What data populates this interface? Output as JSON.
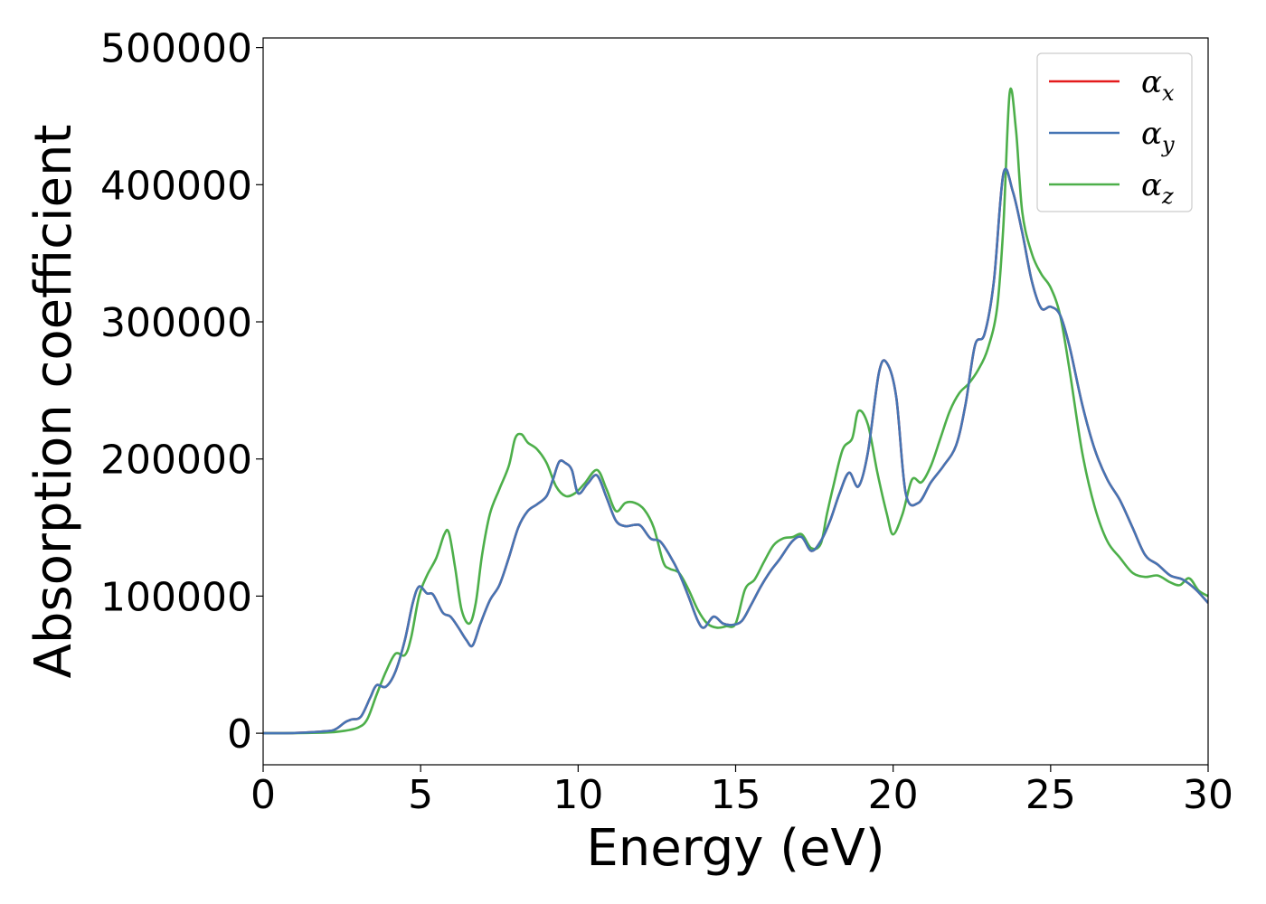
{
  "chart_data": {
    "type": "line",
    "title": "",
    "xlabel": "Energy (eV)",
    "ylabel": "Absorption coefficient",
    "xlim": [
      0,
      30
    ],
    "ylim": [
      -23000,
      507000
    ],
    "xticks": [
      0,
      5,
      10,
      15,
      20,
      25,
      30
    ],
    "yticks": [
      0,
      100000,
      200000,
      300000,
      400000,
      500000
    ],
    "grid": false,
    "legend_position": "top-right",
    "series": [
      {
        "name": "x",
        "color": "#e41a1c",
        "x": [
          0,
          1,
          2,
          2.3,
          2.6,
          2.8,
          3.1,
          3.4,
          3.6,
          3.9,
          4.2,
          4.5,
          4.75,
          4.95,
          5.2,
          5.4,
          5.7,
          5.95,
          6.2,
          6.45,
          6.65,
          6.9,
          7.2,
          7.5,
          7.8,
          8.1,
          8.4,
          8.7,
          9.0,
          9.2,
          9.4,
          9.6,
          9.8,
          10.0,
          10.3,
          10.6,
          10.9,
          11.2,
          11.5,
          11.8,
          12.0,
          12.3,
          12.6,
          12.9,
          13.2,
          13.5,
          13.8,
          14.0,
          14.3,
          14.6,
          14.9,
          15.2,
          15.5,
          15.8,
          16.1,
          16.4,
          16.8,
          17.1,
          17.4,
          17.7,
          18.0,
          18.3,
          18.6,
          18.9,
          19.2,
          19.55,
          19.8,
          20.1,
          20.4,
          20.8,
          21.2,
          21.6,
          22.0,
          22.3,
          22.6,
          22.9,
          23.2,
          23.5,
          23.8,
          24.1,
          24.4,
          24.7,
          25.0,
          25.3,
          25.6,
          26.0,
          26.4,
          26.8,
          27.2,
          27.6,
          28.0,
          28.4,
          28.8,
          29.2,
          29.6,
          30
        ],
        "y": [
          0,
          200,
          1500,
          3000,
          8000,
          10000,
          12000,
          26000,
          35000,
          34000,
          45000,
          68000,
          95000,
          107000,
          102000,
          101000,
          88000,
          85000,
          77000,
          68000,
          64000,
          80000,
          97000,
          108000,
          128000,
          150000,
          162000,
          167000,
          173000,
          185000,
          198000,
          197000,
          192000,
          175000,
          182000,
          188000,
          172000,
          155000,
          151000,
          152000,
          151000,
          142000,
          140000,
          130000,
          117000,
          100000,
          82000,
          77000,
          85000,
          80000,
          79000,
          82000,
          94000,
          107000,
          118000,
          127000,
          140000,
          143000,
          133000,
          140000,
          155000,
          175000,
          190000,
          180000,
          205000,
          263000,
          270000,
          245000,
          175000,
          168000,
          183000,
          195000,
          210000,
          240000,
          283000,
          291000,
          330000,
          408000,
          395000,
          365000,
          330000,
          310000,
          311000,
          305000,
          282000,
          240000,
          207000,
          185000,
          170000,
          150000,
          130000,
          123000,
          115000,
          112000,
          105000,
          95000
        ]
      },
      {
        "name": "y",
        "color": "#4575b4",
        "x": [
          0,
          1,
          2,
          2.3,
          2.6,
          2.8,
          3.1,
          3.4,
          3.6,
          3.9,
          4.2,
          4.5,
          4.75,
          4.95,
          5.2,
          5.4,
          5.7,
          5.95,
          6.2,
          6.45,
          6.65,
          6.9,
          7.2,
          7.5,
          7.8,
          8.1,
          8.4,
          8.7,
          9.0,
          9.2,
          9.4,
          9.6,
          9.8,
          10.0,
          10.3,
          10.6,
          10.9,
          11.2,
          11.5,
          11.8,
          12.0,
          12.3,
          12.6,
          12.9,
          13.2,
          13.5,
          13.8,
          14.0,
          14.3,
          14.6,
          14.9,
          15.2,
          15.5,
          15.8,
          16.1,
          16.4,
          16.8,
          17.1,
          17.4,
          17.7,
          18.0,
          18.3,
          18.6,
          18.9,
          19.2,
          19.55,
          19.8,
          20.1,
          20.4,
          20.8,
          21.2,
          21.6,
          22.0,
          22.3,
          22.6,
          22.9,
          23.2,
          23.5,
          23.8,
          24.1,
          24.4,
          24.7,
          25.0,
          25.3,
          25.6,
          26.0,
          26.4,
          26.8,
          27.2,
          27.6,
          28.0,
          28.4,
          28.8,
          29.2,
          29.6,
          30
        ],
        "y": [
          0,
          200,
          1500,
          3000,
          8000,
          10000,
          12000,
          26000,
          35000,
          34000,
          45000,
          68000,
          95000,
          107000,
          102000,
          101000,
          88000,
          85000,
          77000,
          68000,
          64000,
          80000,
          97000,
          108000,
          128000,
          150000,
          162000,
          167000,
          173000,
          185000,
          198000,
          197000,
          192000,
          175000,
          182000,
          188000,
          172000,
          155000,
          151000,
          152000,
          151000,
          142000,
          140000,
          130000,
          117000,
          100000,
          82000,
          77000,
          85000,
          80000,
          79000,
          82000,
          94000,
          107000,
          118000,
          127000,
          140000,
          143000,
          133000,
          140000,
          155000,
          175000,
          190000,
          180000,
          205000,
          263000,
          270000,
          245000,
          175000,
          168000,
          183000,
          195000,
          210000,
          240000,
          283000,
          291000,
          330000,
          408000,
          395000,
          365000,
          330000,
          310000,
          311000,
          305000,
          282000,
          240000,
          207000,
          185000,
          170000,
          150000,
          130000,
          123000,
          115000,
          112000,
          105000,
          95000
        ]
      },
      {
        "name": "z",
        "color": "#4daf4a",
        "x": [
          0,
          1,
          2,
          2.5,
          3.0,
          3.3,
          3.6,
          3.9,
          4.2,
          4.5,
          4.7,
          4.95,
          5.2,
          5.5,
          5.75,
          5.9,
          6.1,
          6.3,
          6.55,
          6.75,
          6.95,
          7.2,
          7.5,
          7.8,
          8.0,
          8.2,
          8.4,
          8.7,
          9.0,
          9.3,
          9.6,
          9.9,
          10.2,
          10.6,
          10.9,
          11.2,
          11.5,
          11.8,
          12.1,
          12.4,
          12.7,
          12.9,
          13.2,
          13.5,
          13.8,
          14.1,
          14.4,
          14.7,
          15.0,
          15.3,
          15.6,
          15.9,
          16.2,
          16.5,
          16.8,
          17.1,
          17.4,
          17.7,
          17.9,
          18.1,
          18.4,
          18.7,
          18.9,
          19.2,
          19.5,
          19.8,
          20.0,
          20.3,
          20.6,
          20.9,
          21.2,
          21.5,
          21.8,
          22.1,
          22.4,
          22.7,
          23.0,
          23.3,
          23.5,
          23.7,
          23.9,
          24.1,
          24.4,
          24.7,
          25.0,
          25.3,
          25.6,
          26.0,
          26.4,
          26.8,
          27.2,
          27.6,
          28.0,
          28.4,
          28.8,
          29.1,
          29.4,
          29.7,
          30
        ],
        "y": [
          0,
          100,
          500,
          1500,
          4000,
          10000,
          28000,
          45000,
          58000,
          57000,
          70000,
          100000,
          115000,
          128000,
          145000,
          146000,
          120000,
          90000,
          80000,
          95000,
          130000,
          160000,
          178000,
          195000,
          215000,
          218000,
          212000,
          207000,
          197000,
          180000,
          173000,
          175000,
          182000,
          192000,
          178000,
          162000,
          168000,
          168000,
          163000,
          150000,
          125000,
          120000,
          117000,
          105000,
          90000,
          80000,
          77000,
          78000,
          80000,
          105000,
          112000,
          125000,
          137000,
          142000,
          143000,
          145000,
          135000,
          138000,
          160000,
          180000,
          207000,
          215000,
          235000,
          225000,
          190000,
          160000,
          145000,
          160000,
          185000,
          183000,
          195000,
          215000,
          235000,
          248000,
          255000,
          265000,
          280000,
          310000,
          370000,
          467000,
          440000,
          380000,
          350000,
          335000,
          325000,
          305000,
          265000,
          205000,
          165000,
          140000,
          128000,
          117000,
          114000,
          115000,
          110000,
          108000,
          113000,
          104000,
          100000
        ]
      }
    ]
  }
}
